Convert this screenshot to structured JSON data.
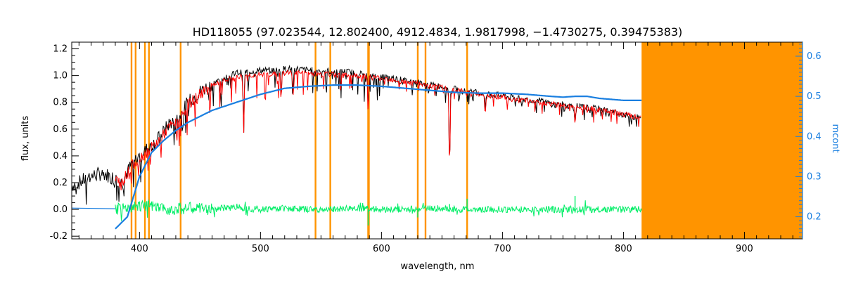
{
  "chart_data": {
    "type": "line",
    "title": "HD118055    (97.023544, 12.802400, 4912.4834, 1.9817998, −1.4730275, 0.39475383)",
    "xlabel": "wavelength, nm",
    "ylabel": "flux, units",
    "ylabel_right": "mcont",
    "xlim": [
      344,
      948
    ],
    "ylim": [
      -0.22,
      1.25
    ],
    "ylim_right": [
      0.145,
      0.635
    ],
    "xticks": [
      400,
      500,
      600,
      700,
      800,
      900
    ],
    "yticks": [
      -0.2,
      0.0,
      0.2,
      0.4,
      0.6,
      0.8,
      1.0,
      1.2
    ],
    "yticks_right": [
      0.2,
      0.3,
      0.4,
      0.5,
      0.6
    ],
    "colors": {
      "observed": "#000000",
      "model": "#ff0000",
      "continuum": "#1a7fe0",
      "residual": "#00ee66",
      "masks": "#ff9400",
      "axes": "#000000"
    },
    "masked_region": [
      815,
      948
    ],
    "mask_lines": [
      393.4,
      396.8,
      404.5,
      407.8,
      434.0,
      545.5,
      557.7,
      589.0,
      589.6,
      630.0,
      636.4,
      670.8
    ],
    "series": [
      {
        "key": "observed",
        "x": [
          344,
          350,
          360,
          370,
          380,
          385,
          390,
          395,
          400,
          405,
          410,
          415,
          420,
          425,
          430,
          435,
          440,
          445,
          450,
          460,
          470,
          480,
          490,
          500,
          510,
          520,
          530,
          540,
          550,
          560,
          570,
          580,
          590,
          600,
          610,
          620,
          630,
          640,
          650,
          660,
          670,
          680,
          690,
          700,
          710,
          720,
          730,
          740,
          750,
          760,
          770,
          780,
          790,
          800,
          810,
          815
        ],
        "y": [
          0.18,
          0.2,
          0.25,
          0.27,
          0.23,
          0.2,
          0.28,
          0.36,
          0.4,
          0.44,
          0.48,
          0.52,
          0.58,
          0.65,
          0.66,
          0.72,
          0.8,
          0.84,
          0.88,
          0.94,
          0.98,
          1.02,
          1.03,
          1.04,
          1.04,
          1.05,
          1.05,
          1.04,
          1.04,
          1.03,
          1.03,
          1.02,
          1.0,
          0.99,
          0.98,
          0.96,
          0.95,
          0.93,
          0.92,
          0.9,
          0.88,
          0.87,
          0.86,
          0.85,
          0.83,
          0.82,
          0.81,
          0.79,
          0.78,
          0.77,
          0.76,
          0.75,
          0.73,
          0.71,
          0.69,
          0.68
        ]
      },
      {
        "key": "model",
        "x": [
          380,
          385,
          390,
          395,
          400,
          405,
          410,
          415,
          420,
          425,
          430,
          435,
          440,
          445,
          450,
          460,
          470,
          480,
          490,
          500,
          510,
          520,
          530,
          540,
          550,
          560,
          570,
          580,
          590,
          600,
          610,
          620,
          630,
          640,
          650,
          660,
          670,
          680,
          690,
          700,
          710,
          720,
          730,
          740,
          750,
          760,
          770,
          780,
          790,
          800,
          810,
          815
        ],
        "y": [
          0.22,
          0.2,
          0.27,
          0.34,
          0.38,
          0.42,
          0.46,
          0.5,
          0.56,
          0.62,
          0.64,
          0.7,
          0.78,
          0.82,
          0.86,
          0.92,
          0.96,
          0.99,
          1.0,
          1.01,
          1.01,
          1.02,
          1.02,
          1.02,
          1.01,
          1.01,
          1.0,
          1.0,
          0.99,
          0.98,
          0.97,
          0.95,
          0.94,
          0.92,
          0.91,
          0.89,
          0.88,
          0.86,
          0.85,
          0.84,
          0.82,
          0.81,
          0.8,
          0.79,
          0.78,
          0.77,
          0.76,
          0.74,
          0.73,
          0.71,
          0.69,
          0.68
        ]
      },
      {
        "key": "continuum",
        "axis": "right",
        "x": [
          380,
          390,
          400,
          410,
          420,
          430,
          440,
          450,
          460,
          480,
          500,
          520,
          540,
          560,
          580,
          600,
          620,
          640,
          660,
          680,
          700,
          720,
          740,
          750,
          760,
          770,
          780,
          800,
          815
        ],
        "y": [
          0.17,
          0.2,
          0.3,
          0.36,
          0.39,
          0.415,
          0.435,
          0.45,
          0.465,
          0.485,
          0.505,
          0.52,
          0.525,
          0.528,
          0.528,
          0.525,
          0.52,
          0.515,
          0.51,
          0.508,
          0.508,
          0.505,
          0.5,
          0.498,
          0.5,
          0.5,
          0.495,
          0.49,
          0.49
        ]
      },
      {
        "key": "residual",
        "x": [
          380,
          390,
          400,
          410,
          420,
          440,
          460,
          480,
          500,
          520,
          540,
          560,
          580,
          600,
          620,
          640,
          660,
          680,
          700,
          720,
          740,
          760,
          780,
          800,
          815
        ],
        "y": [
          0.0,
          0.01,
          0.03,
          0.02,
          0.0,
          0.01,
          0.0,
          0.02,
          0.0,
          0.01,
          0.0,
          0.0,
          0.01,
          0.0,
          0.0,
          0.01,
          0.0,
          0.0,
          0.0,
          0.0,
          0.0,
          0.0,
          0.0,
          0.0,
          0.0
        ]
      }
    ],
    "absorption_lines": [
      {
        "x": 486.1,
        "depth": 0.45
      },
      {
        "x": 517.0,
        "depth": 0.2
      },
      {
        "x": 527.0,
        "depth": 0.15
      },
      {
        "x": 589.0,
        "depth": 0.25
      },
      {
        "x": 656.3,
        "depth": 0.6
      },
      {
        "x": 686.0,
        "depth": 0.12
      },
      {
        "x": 760.0,
        "depth": 0.12
      }
    ],
    "residual_spikes": [
      {
        "x": 589.0,
        "y": -0.12
      },
      {
        "x": 656.3,
        "y": 0.04
      },
      {
        "x": 670.8,
        "y": 0.08
      },
      {
        "x": 760.0,
        "y": 0.1
      },
      {
        "x": 630.0,
        "y": -0.06
      }
    ]
  }
}
